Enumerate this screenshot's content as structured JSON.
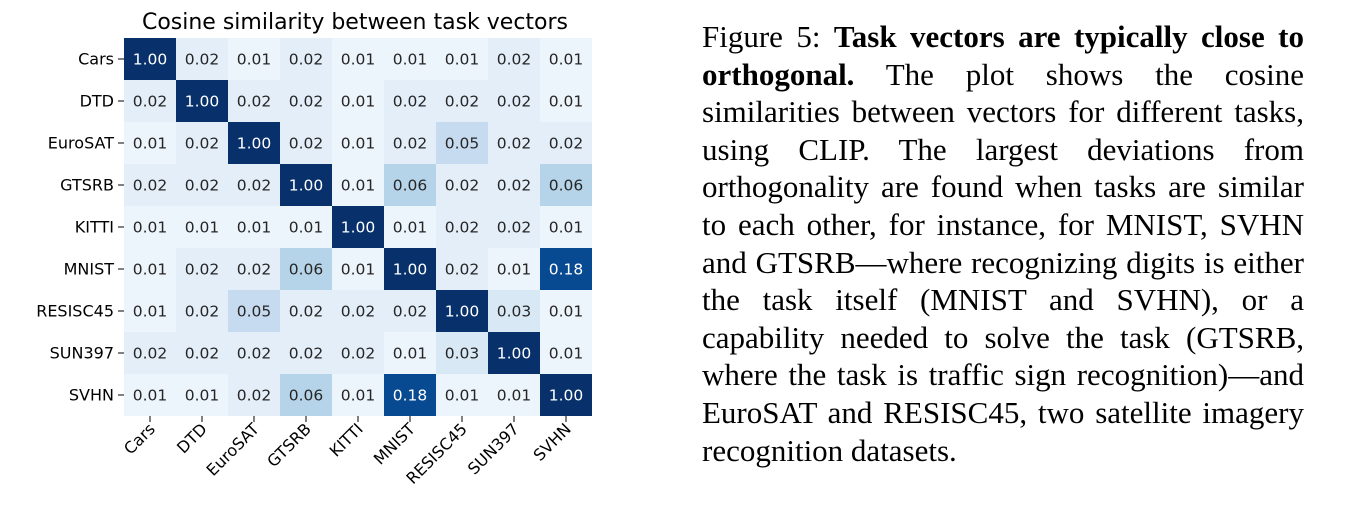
{
  "chart_data": {
    "type": "heatmap",
    "title": "Cosine similarity between task vectors",
    "xlabel": "",
    "ylabel": "",
    "rows": [
      "Cars",
      "DTD",
      "EuroSAT",
      "GTSRB",
      "KITTI",
      "MNIST",
      "RESISC45",
      "SUN397",
      "SVHN"
    ],
    "columns": [
      "Cars",
      "DTD",
      "EuroSAT",
      "GTSRB",
      "KITTI",
      "MNIST",
      "RESISC45",
      "SUN397",
      "SVHN"
    ],
    "values": [
      [
        1.0,
        0.02,
        0.01,
        0.02,
        0.01,
        0.01,
        0.01,
        0.02,
        0.01
      ],
      [
        0.02,
        1.0,
        0.02,
        0.02,
        0.01,
        0.02,
        0.02,
        0.02,
        0.01
      ],
      [
        0.01,
        0.02,
        1.0,
        0.02,
        0.01,
        0.02,
        0.05,
        0.02,
        0.02
      ],
      [
        0.02,
        0.02,
        0.02,
        1.0,
        0.01,
        0.06,
        0.02,
        0.02,
        0.06
      ],
      [
        0.01,
        0.01,
        0.01,
        0.01,
        1.0,
        0.01,
        0.02,
        0.02,
        0.01
      ],
      [
        0.01,
        0.02,
        0.02,
        0.06,
        0.01,
        1.0,
        0.02,
        0.01,
        0.18
      ],
      [
        0.01,
        0.02,
        0.05,
        0.02,
        0.02,
        0.02,
        1.0,
        0.03,
        0.01
      ],
      [
        0.02,
        0.02,
        0.02,
        0.02,
        0.02,
        0.01,
        0.03,
        1.0,
        0.01
      ],
      [
        0.01,
        0.01,
        0.02,
        0.06,
        0.01,
        0.18,
        0.01,
        0.01,
        1.0
      ]
    ],
    "value_format": "2 decimals",
    "colormap": "Blues",
    "color_range": [
      0.0,
      0.2
    ],
    "legend": "none",
    "grid": false
  },
  "caption": {
    "figure_label": "Figure 5:",
    "bold_title": "Task vectors are typically close to orthogonal.",
    "body": "The plot shows the cosine similarities between vectors for different tasks, using CLIP. The largest deviations from orthogonality are found when tasks are similar to each other, for instance, for MNIST, SVHN and GTSRB—where recognizing digits is either the task itself (MNIST and SVHN), or a capability needed to solve the task (GTSRB, where the task is traffic sign recognition)—and EuroSAT and RESISC45, two satellite imagery recognition datasets."
  }
}
